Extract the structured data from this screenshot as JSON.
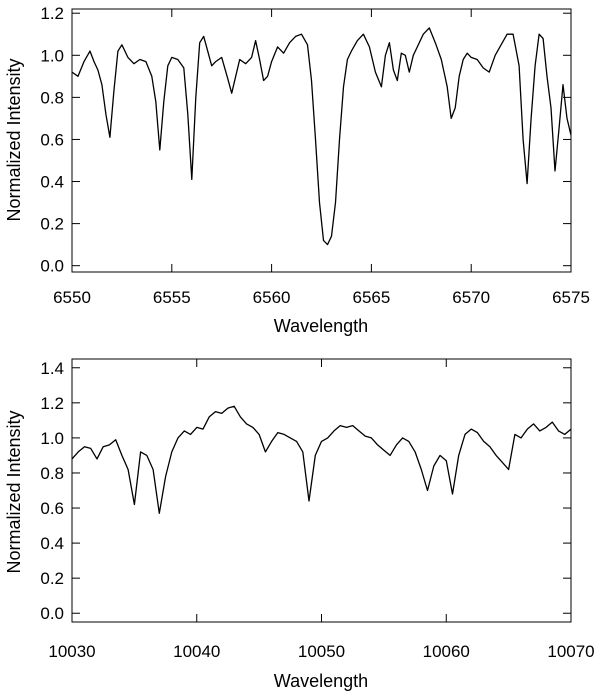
{
  "chart_data": [
    {
      "type": "line",
      "xlabel": "Wavelength",
      "ylabel": "Normalized Intensity",
      "xlim": [
        6550,
        6575
      ],
      "ylim": [
        -0.03,
        1.22
      ],
      "xticks": [
        6550,
        6555,
        6560,
        6565,
        6570,
        6575
      ],
      "yticks": [
        0.0,
        0.2,
        0.4,
        0.6,
        0.8,
        1.0,
        1.2
      ],
      "yticklabels": [
        "0.0",
        "0.2",
        "0.4",
        "0.6",
        "0.8",
        "1.0",
        "1.2"
      ],
      "series": [
        {
          "x": [
            6550.0,
            6550.3,
            6550.6,
            6550.9,
            6551.1,
            6551.3,
            6551.5,
            6551.7,
            6551.9,
            6552.1,
            6552.3,
            6552.5,
            6552.8,
            6553.1,
            6553.4,
            6553.7,
            6554.0,
            6554.2,
            6554.4,
            6554.6,
            6554.8,
            6555.0,
            6555.3,
            6555.6,
            6555.8,
            6556.0,
            6556.2,
            6556.4,
            6556.6,
            6556.8,
            6557.0,
            6557.2,
            6557.5,
            6557.8,
            6558.0,
            6558.2,
            6558.4,
            6558.7,
            6559.0,
            6559.2,
            6559.4,
            6559.6,
            6559.8,
            6560.0,
            6560.3,
            6560.6,
            6560.9,
            6561.2,
            6561.5,
            6561.8,
            6562.0,
            6562.2,
            6562.4,
            6562.6,
            6562.8,
            6563.0,
            6563.2,
            6563.4,
            6563.6,
            6563.8,
            6564.0,
            6564.3,
            6564.6,
            6564.9,
            6565.2,
            6565.5,
            6565.7,
            6565.9,
            6566.1,
            6566.3,
            6566.5,
            6566.7,
            6566.9,
            6567.1,
            6567.3,
            6567.6,
            6567.9,
            6568.2,
            6568.5,
            6568.8,
            6569.0,
            6569.2,
            6569.4,
            6569.6,
            6569.8,
            6570.0,
            6570.3,
            6570.6,
            6570.9,
            6571.2,
            6571.5,
            6571.8,
            6572.1,
            6572.4,
            6572.6,
            6572.8,
            6573.0,
            6573.2,
            6573.4,
            6573.6,
            6573.8,
            6574.0,
            6574.2,
            6574.4,
            6574.6,
            6574.8,
            6575.0
          ],
          "y": [
            0.92,
            0.9,
            0.97,
            1.02,
            0.97,
            0.93,
            0.86,
            0.72,
            0.61,
            0.83,
            1.02,
            1.05,
            0.99,
            0.96,
            0.98,
            0.97,
            0.9,
            0.78,
            0.55,
            0.78,
            0.95,
            0.99,
            0.98,
            0.94,
            0.72,
            0.41,
            0.8,
            1.06,
            1.09,
            1.02,
            0.95,
            0.97,
            0.99,
            0.89,
            0.82,
            0.9,
            0.98,
            0.96,
            0.99,
            1.07,
            0.98,
            0.88,
            0.9,
            0.97,
            1.04,
            1.01,
            1.06,
            1.09,
            1.1,
            1.05,
            0.88,
            0.6,
            0.3,
            0.12,
            0.1,
            0.14,
            0.3,
            0.6,
            0.85,
            0.98,
            1.02,
            1.07,
            1.1,
            1.04,
            0.92,
            0.85,
            1.0,
            1.06,
            0.93,
            0.88,
            1.01,
            1.0,
            0.92,
            1.0,
            1.04,
            1.1,
            1.13,
            1.06,
            0.98,
            0.85,
            0.7,
            0.75,
            0.9,
            0.98,
            1.01,
            0.99,
            0.98,
            0.94,
            0.92,
            1.0,
            1.05,
            1.1,
            1.1,
            0.95,
            0.6,
            0.39,
            0.7,
            0.95,
            1.1,
            1.08,
            0.9,
            0.75,
            0.45,
            0.65,
            0.86,
            0.7,
            0.62
          ]
        }
      ]
    },
    {
      "type": "line",
      "xlabel": "Wavelength",
      "ylabel": "Normalized Intensity",
      "xlim": [
        10030,
        10070
      ],
      "ylim": [
        -0.05,
        1.45
      ],
      "xticks": [
        10030,
        10040,
        10050,
        10060,
        10070
      ],
      "yticks": [
        0.0,
        0.2,
        0.4,
        0.6,
        0.8,
        1.0,
        1.2,
        1.4
      ],
      "yticklabels": [
        "0.0",
        "0.2",
        "0.4",
        "0.6",
        "0.8",
        "1.0",
        "1.2",
        "1.4"
      ],
      "series": [
        {
          "x": [
            10030.0,
            10030.5,
            10031.0,
            10031.5,
            10032.0,
            10032.5,
            10033.0,
            10033.5,
            10034.0,
            10034.5,
            10035.0,
            10035.5,
            10036.0,
            10036.5,
            10037.0,
            10037.5,
            10038.0,
            10038.5,
            10039.0,
            10039.5,
            10040.0,
            10040.5,
            10041.0,
            10041.5,
            10042.0,
            10042.5,
            10043.0,
            10043.5,
            10044.0,
            10044.5,
            10045.0,
            10045.5,
            10046.0,
            10046.5,
            10047.0,
            10047.5,
            10048.0,
            10048.5,
            10049.0,
            10049.5,
            10050.0,
            10050.5,
            10051.0,
            10051.5,
            10052.0,
            10052.5,
            10053.0,
            10053.5,
            10054.0,
            10054.5,
            10055.0,
            10055.5,
            10056.0,
            10056.5,
            10057.0,
            10057.5,
            10058.0,
            10058.5,
            10059.0,
            10059.5,
            10060.0,
            10060.5,
            10061.0,
            10061.5,
            10062.0,
            10062.5,
            10063.0,
            10063.5,
            10064.0,
            10064.5,
            10065.0,
            10065.5,
            10066.0,
            10066.5,
            10067.0,
            10067.5,
            10068.0,
            10068.5,
            10069.0,
            10069.5,
            10070.0
          ],
          "y": [
            0.88,
            0.92,
            0.95,
            0.94,
            0.88,
            0.95,
            0.96,
            0.99,
            0.9,
            0.82,
            0.62,
            0.92,
            0.9,
            0.82,
            0.57,
            0.78,
            0.92,
            1.0,
            1.04,
            1.02,
            1.06,
            1.05,
            1.12,
            1.15,
            1.14,
            1.17,
            1.18,
            1.12,
            1.08,
            1.06,
            1.02,
            0.92,
            0.98,
            1.03,
            1.02,
            1.0,
            0.98,
            0.92,
            0.64,
            0.9,
            0.98,
            1.0,
            1.04,
            1.07,
            1.06,
            1.07,
            1.04,
            1.01,
            1.0,
            0.96,
            0.93,
            0.9,
            0.96,
            1.0,
            0.98,
            0.92,
            0.82,
            0.7,
            0.84,
            0.9,
            0.87,
            0.68,
            0.9,
            1.02,
            1.05,
            1.03,
            0.98,
            0.95,
            0.9,
            0.86,
            0.82,
            1.02,
            1.0,
            1.05,
            1.08,
            1.04,
            1.06,
            1.09,
            1.04,
            1.02,
            1.05
          ]
        }
      ]
    }
  ]
}
